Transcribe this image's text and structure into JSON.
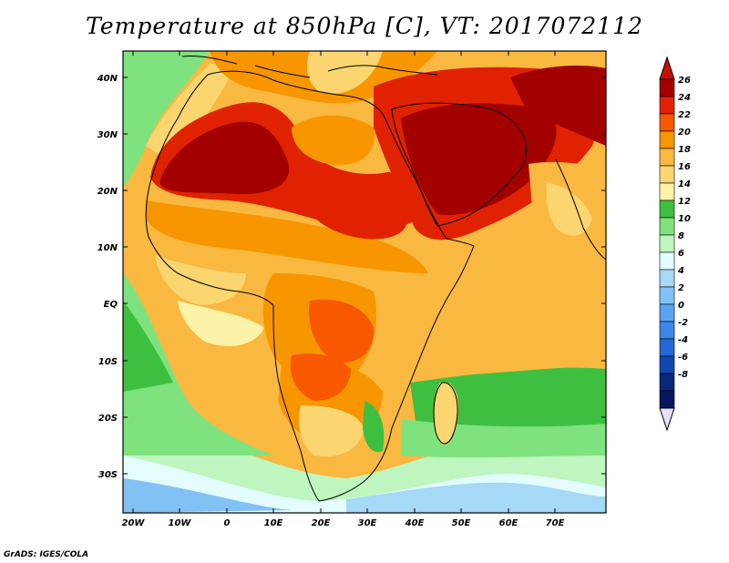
{
  "title": "Temperature at 850hPa [C], VT: 2017072112",
  "credit": "GrADS: IGES/COLA",
  "map": {
    "lon_range": [
      -23,
      80
    ],
    "lat_range": [
      -36,
      45
    ],
    "lon_ticks": [
      "20W",
      "10W",
      "0",
      "10E",
      "20E",
      "30E",
      "40E",
      "50E",
      "60E",
      "70E"
    ],
    "lat_ticks": [
      "40N",
      "30N",
      "20N",
      "10N",
      "EQ",
      "10S",
      "20S",
      "30S"
    ]
  },
  "colorbar": {
    "labels": [
      "26",
      "24",
      "22",
      "20",
      "18",
      "16",
      "14",
      "12",
      "10",
      "8",
      "6",
      "4",
      "2",
      "0",
      "-2",
      "-4",
      "-6",
      "-8"
    ],
    "colors": [
      "#a30000",
      "#e02200",
      "#f85800",
      "#f79600",
      "#f9b840",
      "#fad570",
      "#fdf3a8",
      "#3fbf3f",
      "#7ee37e",
      "#bff5bf",
      "#e3fdfd",
      "#a6d8f7",
      "#82c1f4",
      "#5aa4ef",
      "#3b87e8",
      "#2468d8",
      "#1048b0",
      "#08287a",
      "#0a1560"
    ],
    "top_arrow_color": "#c81000",
    "bottom_arrow_color": "#e8e0fa"
  }
}
